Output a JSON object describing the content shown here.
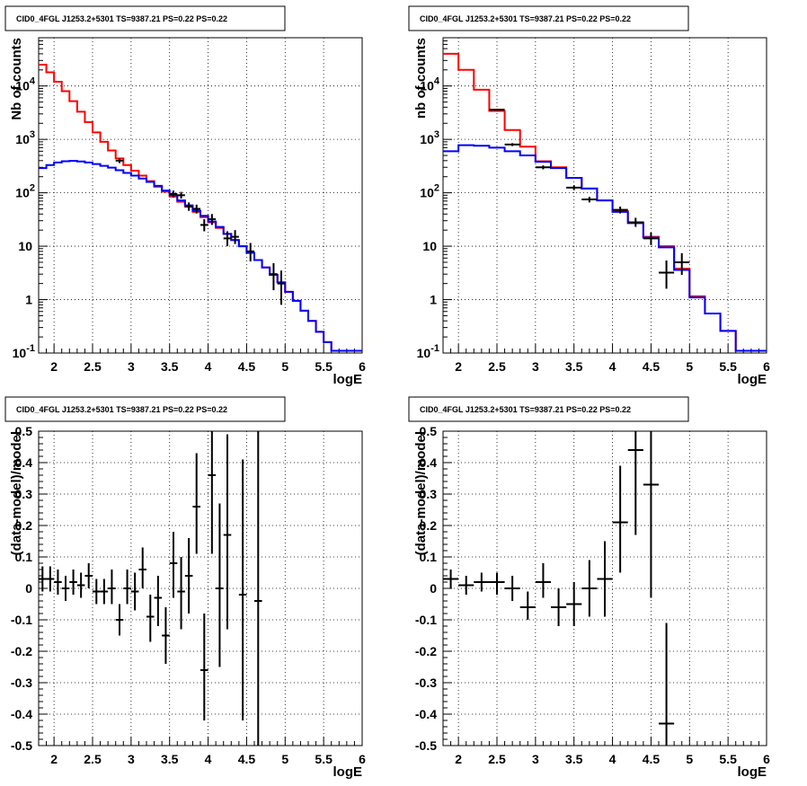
{
  "chart_data": [
    {
      "type": "line",
      "title": "CID0_4FGL J1253.2+5301 TS=9387.21 PS=0.22 PS=0.22",
      "xlabel": "logE",
      "ylabel": "Nb of counts",
      "yscale": "log",
      "xlim": [
        1.8,
        6.0
      ],
      "ylim": [
        0.1,
        80000
      ],
      "grid": true,
      "x_ticks": [
        "2",
        "2.5",
        "3",
        "3.5",
        "4",
        "4.5",
        "5",
        "5.5",
        "6"
      ],
      "y_ticks": [
        {
          "v": 0.1,
          "base": "10",
          "exp": "-1"
        },
        {
          "v": 1,
          "text": "1"
        },
        {
          "v": 10,
          "text": "10"
        },
        {
          "v": 100,
          "base": "10",
          "exp": "2"
        },
        {
          "v": 1000,
          "base": "10",
          "exp": "3"
        },
        {
          "v": 10000,
          "base": "10",
          "exp": "4"
        }
      ],
      "bin_edges": [
        1.8,
        1.9,
        2.0,
        2.1,
        2.2,
        2.3,
        2.4,
        2.5,
        2.6,
        2.7,
        2.8,
        2.9,
        3.0,
        3.1,
        3.2,
        3.3,
        3.4,
        3.5,
        3.6,
        3.7,
        3.8,
        3.9,
        4.0,
        4.1,
        4.2,
        4.3,
        4.4,
        4.5,
        4.6,
        4.7,
        4.8,
        4.9,
        5.0,
        5.1,
        5.2,
        5.3,
        5.4,
        5.5,
        5.6,
        5.7,
        5.8,
        5.9,
        6.0
      ],
      "series": [
        {
          "color": "#ff0000",
          "values": [
            25000,
            18000,
            12000,
            8000,
            5200,
            3300,
            2100,
            1350,
            900,
            620,
            440,
            330,
            260,
            210,
            165,
            130,
            105,
            85,
            68,
            55,
            44,
            35,
            28,
            22,
            17,
            13,
            10,
            7.5,
            5.5,
            4.0,
            2.9,
            2.1,
            1.4,
            0.95,
            0.62,
            0.4,
            0.25,
            0.16,
            0.11,
            0.11,
            0.11,
            0.11
          ]
        },
        {
          "color": "#0000ff",
          "values": [
            290,
            330,
            370,
            390,
            395,
            385,
            370,
            345,
            320,
            295,
            265,
            235,
            210,
            185,
            160,
            135,
            110,
            90,
            72,
            58,
            46,
            37,
            29,
            23,
            17,
            13,
            10,
            7.5,
            5.5,
            4.0,
            2.9,
            2.1,
            1.4,
            0.95,
            0.62,
            0.4,
            0.25,
            0.16,
            0.11,
            0.11,
            0.11,
            0.11
          ]
        }
      ],
      "points": [
        {
          "x": 2.85,
          "y": 400,
          "xerr": 0.05,
          "ylo": 360,
          "yhi": 440
        },
        {
          "x": 3.55,
          "y": 95,
          "xerr": 0.05,
          "ylo": 82,
          "yhi": 110
        },
        {
          "x": 3.65,
          "y": 90,
          "xerr": 0.05,
          "ylo": 78,
          "yhi": 104
        },
        {
          "x": 3.75,
          "y": 55,
          "xerr": 0.05,
          "ylo": 46,
          "yhi": 66
        },
        {
          "x": 3.85,
          "y": 50,
          "xerr": 0.05,
          "ylo": 41,
          "yhi": 60
        },
        {
          "x": 3.95,
          "y": 25,
          "xerr": 0.05,
          "ylo": 19,
          "yhi": 32
        },
        {
          "x": 4.05,
          "y": 32,
          "xerr": 0.05,
          "ylo": 25,
          "yhi": 40
        },
        {
          "x": 4.25,
          "y": 14,
          "xerr": 0.05,
          "ylo": 10,
          "yhi": 19
        },
        {
          "x": 4.35,
          "y": 15,
          "xerr": 0.05,
          "ylo": 11,
          "yhi": 20
        },
        {
          "x": 4.55,
          "y": 8,
          "xerr": 0.05,
          "ylo": 5.2,
          "yhi": 11.5
        },
        {
          "x": 4.85,
          "y": 3,
          "xerr": 0.05,
          "ylo": 1.5,
          "yhi": 4.8
        },
        {
          "x": 4.95,
          "y": 2,
          "xerr": 0.05,
          "ylo": 0.8,
          "yhi": 3.5
        }
      ]
    },
    {
      "type": "line",
      "title": "CID0_4FGL J1253.2+5301 TS=9387.21 PS=0.22 PS=0.22",
      "xlabel": "logE",
      "ylabel": "nb of counts",
      "yscale": "log",
      "xlim": [
        1.8,
        6.0
      ],
      "ylim": [
        0.1,
        80000
      ],
      "grid": true,
      "x_ticks": [
        "2",
        "2.5",
        "3",
        "3.5",
        "4",
        "4.5",
        "5",
        "5.5",
        "6"
      ],
      "y_ticks": [
        {
          "v": 0.1,
          "base": "10",
          "exp": "-1"
        },
        {
          "v": 1,
          "text": "1"
        },
        {
          "v": 10,
          "text": "10"
        },
        {
          "v": 100,
          "base": "10",
          "exp": "2"
        },
        {
          "v": 1000,
          "base": "10",
          "exp": "3"
        },
        {
          "v": 10000,
          "base": "10",
          "exp": "4"
        }
      ],
      "bin_edges": [
        1.8,
        2.0,
        2.2,
        2.4,
        2.6,
        2.8,
        3.0,
        3.2,
        3.4,
        3.6,
        3.8,
        4.0,
        4.2,
        4.4,
        4.6,
        4.8,
        5.0,
        5.2,
        5.4,
        5.6,
        5.8,
        6.0
      ],
      "series": [
        {
          "color": "#ff0000",
          "values": [
            40000,
            20000,
            8500,
            3400,
            1500,
            730,
            390,
            300,
            190,
            120,
            72,
            45,
            28,
            15,
            10,
            3.8,
            1.15,
            0.55,
            0.26,
            0.11,
            0.11
          ]
        },
        {
          "color": "#0000ff",
          "values": [
            600,
            780,
            760,
            700,
            600,
            500,
            380,
            290,
            190,
            120,
            72,
            44,
            27,
            14.5,
            9.5,
            3.6,
            1.1,
            0.55,
            0.26,
            0.11,
            0.11
          ]
        }
      ],
      "points": [
        {
          "x": 2.5,
          "y": 3600,
          "xerr": 0.1,
          "ylo": 3450,
          "yhi": 3750
        },
        {
          "x": 2.7,
          "y": 800,
          "xerr": 0.1,
          "ylo": 750,
          "yhi": 850
        },
        {
          "x": 3.1,
          "y": 300,
          "xerr": 0.1,
          "ylo": 275,
          "yhi": 325
        },
        {
          "x": 3.5,
          "y": 125,
          "xerr": 0.1,
          "ylo": 112,
          "yhi": 138
        },
        {
          "x": 3.7,
          "y": 75,
          "xerr": 0.1,
          "ylo": 66,
          "yhi": 84
        },
        {
          "x": 4.1,
          "y": 48,
          "xerr": 0.1,
          "ylo": 41,
          "yhi": 55
        },
        {
          "x": 4.3,
          "y": 28,
          "xerr": 0.1,
          "ylo": 23,
          "yhi": 34
        },
        {
          "x": 4.5,
          "y": 14,
          "xerr": 0.1,
          "ylo": 10.5,
          "yhi": 18
        },
        {
          "x": 4.7,
          "y": 3.2,
          "xerr": 0.1,
          "ylo": 1.6,
          "yhi": 5.4
        },
        {
          "x": 4.9,
          "y": 5.0,
          "xerr": 0.1,
          "ylo": 2.9,
          "yhi": 7.4
        }
      ]
    },
    {
      "type": "scatter",
      "title": "CID0_4FGL J1253.2+5301 TS=9387.21 PS=0.22 PS=0.22",
      "xlabel": "logE",
      "ylabel": "(data-model)/model",
      "xlim": [
        1.8,
        6.0
      ],
      "ylim": [
        -0.5,
        0.5
      ],
      "grid": true,
      "x_ticks": [
        "2",
        "2.5",
        "3",
        "3.5",
        "4",
        "4.5",
        "5",
        "5.5",
        "6"
      ],
      "y_ticks": [
        "-0.5",
        "-0.4",
        "-0.3",
        "-0.2",
        "-0.1",
        "0",
        "0.1",
        "0.2",
        "0.3",
        "0.4",
        "0.5"
      ],
      "points": [
        {
          "x": 1.85,
          "y": 0.03,
          "xerr": 0.05,
          "ylo": -0.01,
          "yhi": 0.07
        },
        {
          "x": 1.95,
          "y": 0.03,
          "xerr": 0.05,
          "ylo": -0.01,
          "yhi": 0.07
        },
        {
          "x": 2.05,
          "y": 0.02,
          "xerr": 0.05,
          "ylo": -0.02,
          "yhi": 0.06
        },
        {
          "x": 2.15,
          "y": 0.0,
          "xerr": 0.05,
          "ylo": -0.04,
          "yhi": 0.04
        },
        {
          "x": 2.25,
          "y": 0.02,
          "xerr": 0.05,
          "ylo": -0.02,
          "yhi": 0.06
        },
        {
          "x": 2.35,
          "y": 0.01,
          "xerr": 0.05,
          "ylo": -0.03,
          "yhi": 0.05
        },
        {
          "x": 2.45,
          "y": 0.04,
          "xerr": 0.05,
          "ylo": 0.0,
          "yhi": 0.08
        },
        {
          "x": 2.55,
          "y": -0.01,
          "xerr": 0.05,
          "ylo": -0.05,
          "yhi": 0.03
        },
        {
          "x": 2.65,
          "y": -0.01,
          "xerr": 0.05,
          "ylo": -0.05,
          "yhi": 0.03
        },
        {
          "x": 2.75,
          "y": 0.0,
          "xerr": 0.05,
          "ylo": -0.05,
          "yhi": 0.06
        },
        {
          "x": 2.85,
          "y": -0.1,
          "xerr": 0.05,
          "ylo": -0.15,
          "yhi": -0.05
        },
        {
          "x": 2.95,
          "y": 0.0,
          "xerr": 0.05,
          "ylo": -0.05,
          "yhi": 0.06
        },
        {
          "x": 3.05,
          "y": -0.01,
          "xerr": 0.05,
          "ylo": -0.07,
          "yhi": 0.05
        },
        {
          "x": 3.15,
          "y": 0.06,
          "xerr": 0.05,
          "ylo": 0.0,
          "yhi": 0.13
        },
        {
          "x": 3.25,
          "y": -0.09,
          "xerr": 0.05,
          "ylo": -0.17,
          "yhi": -0.02
        },
        {
          "x": 3.35,
          "y": -0.03,
          "xerr": 0.05,
          "ylo": -0.12,
          "yhi": 0.04
        },
        {
          "x": 3.45,
          "y": -0.15,
          "xerr": 0.05,
          "ylo": -0.24,
          "yhi": -0.06
        },
        {
          "x": 3.55,
          "y": 0.08,
          "xerr": 0.05,
          "ylo": -0.03,
          "yhi": 0.18
        },
        {
          "x": 3.65,
          "y": -0.01,
          "xerr": 0.05,
          "ylo": -0.13,
          "yhi": 0.1
        },
        {
          "x": 3.75,
          "y": 0.04,
          "xerr": 0.05,
          "ylo": -0.08,
          "yhi": 0.16
        },
        {
          "x": 3.85,
          "y": 0.26,
          "xerr": 0.05,
          "ylo": 0.11,
          "yhi": 0.43
        },
        {
          "x": 3.95,
          "y": -0.26,
          "xerr": 0.05,
          "ylo": -0.42,
          "yhi": -0.08
        },
        {
          "x": 4.05,
          "y": 0.36,
          "xerr": 0.05,
          "ylo": 0.11,
          "yhi": 0.5
        },
        {
          "x": 4.15,
          "y": 0.0,
          "xerr": 0.05,
          "ylo": -0.25,
          "yhi": 0.27
        },
        {
          "x": 4.25,
          "y": 0.17,
          "xerr": 0.05,
          "ylo": -0.13,
          "yhi": 0.49
        },
        {
          "x": 4.45,
          "y": -0.02,
          "xerr": 0.05,
          "ylo": -0.42,
          "yhi": 0.41
        },
        {
          "x": 4.65,
          "y": -0.04,
          "xerr": 0.05,
          "ylo": -0.5,
          "yhi": 0.5
        }
      ]
    },
    {
      "type": "scatter",
      "title": "CID0_4FGL J1253.2+5301 TS=9387.21 PS=0.22 PS=0.22",
      "xlabel": "logE",
      "ylabel": "(data-model)/model",
      "xlim": [
        1.8,
        6.0
      ],
      "ylim": [
        -0.5,
        0.5
      ],
      "grid": true,
      "x_ticks": [
        "2",
        "2.5",
        "3",
        "3.5",
        "4",
        "4.5",
        "5",
        "5.5",
        "6"
      ],
      "y_ticks": [
        "-0.5",
        "-0.4",
        "-0.3",
        "-0.2",
        "-0.1",
        "0",
        "0.1",
        "0.2",
        "0.3",
        "0.4",
        "0.5"
      ],
      "points": [
        {
          "x": 1.9,
          "y": 0.03,
          "xerr": 0.1,
          "ylo": 0.0,
          "yhi": 0.06
        },
        {
          "x": 2.1,
          "y": 0.01,
          "xerr": 0.1,
          "ylo": -0.02,
          "yhi": 0.04
        },
        {
          "x": 2.3,
          "y": 0.02,
          "xerr": 0.1,
          "ylo": -0.01,
          "yhi": 0.05
        },
        {
          "x": 2.5,
          "y": 0.02,
          "xerr": 0.1,
          "ylo": -0.02,
          "yhi": 0.05
        },
        {
          "x": 2.7,
          "y": 0.0,
          "xerr": 0.1,
          "ylo": -0.04,
          "yhi": 0.04
        },
        {
          "x": 2.9,
          "y": -0.06,
          "xerr": 0.1,
          "ylo": -0.1,
          "yhi": -0.01
        },
        {
          "x": 3.1,
          "y": 0.02,
          "xerr": 0.1,
          "ylo": -0.03,
          "yhi": 0.08
        },
        {
          "x": 3.3,
          "y": -0.06,
          "xerr": 0.1,
          "ylo": -0.12,
          "yhi": 0.0
        },
        {
          "x": 3.5,
          "y": -0.05,
          "xerr": 0.1,
          "ylo": -0.12,
          "yhi": 0.02
        },
        {
          "x": 3.7,
          "y": 0.0,
          "xerr": 0.1,
          "ylo": -0.09,
          "yhi": 0.09
        },
        {
          "x": 3.9,
          "y": 0.03,
          "xerr": 0.1,
          "ylo": -0.09,
          "yhi": 0.15
        },
        {
          "x": 4.1,
          "y": 0.21,
          "xerr": 0.1,
          "ylo": 0.05,
          "yhi": 0.39
        },
        {
          "x": 4.3,
          "y": 0.44,
          "xerr": 0.1,
          "ylo": 0.17,
          "yhi": 0.5
        },
        {
          "x": 4.5,
          "y": 0.33,
          "xerr": 0.1,
          "ylo": -0.03,
          "yhi": 0.5
        },
        {
          "x": 4.7,
          "y": -0.43,
          "xerr": 0.1,
          "ylo": -0.5,
          "yhi": -0.11
        }
      ]
    }
  ]
}
